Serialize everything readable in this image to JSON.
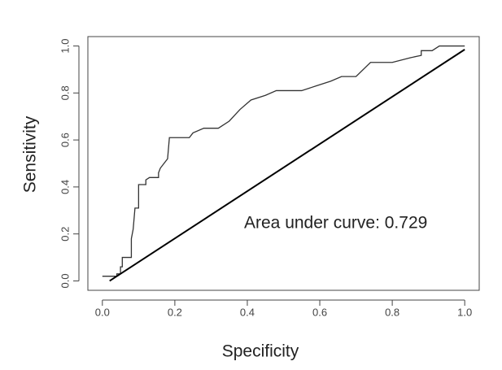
{
  "chart_data": {
    "type": "line",
    "xlabel": "Specificity",
    "ylabel": "Sensitivity",
    "annotation": "Area under curve: 0.729",
    "xlim": [
      -0.04,
      1.04
    ],
    "ylim": [
      -0.04,
      1.04
    ],
    "xticks": [
      {
        "value": 0,
        "label": "0.0"
      },
      0.2,
      0.4,
      0.6,
      0.8,
      {
        "value": 1,
        "label": "1.0"
      }
    ],
    "yticks": [
      {
        "value": 0,
        "label": "0.0"
      },
      0.2,
      0.4,
      0.6,
      0.8,
      {
        "value": 1,
        "label": "1.0"
      }
    ],
    "series": [
      {
        "color": "#333333",
        "x": [
          0.0,
          0.04,
          0.04,
          0.05,
          0.05,
          0.055,
          0.055,
          0.08,
          0.08,
          0.085,
          0.09,
          0.1,
          0.1,
          0.12,
          0.12,
          0.13,
          0.155,
          0.155,
          0.16,
          0.17,
          0.18,
          0.185,
          0.24,
          0.25,
          0.28,
          0.32,
          0.35,
          0.38,
          0.41,
          0.45,
          0.48,
          0.55,
          0.59,
          0.63,
          0.66,
          0.7,
          0.74,
          0.8,
          0.85,
          0.88,
          0.88,
          0.91,
          0.93,
          1.0
        ],
        "values": [
          0.02,
          0.02,
          0.03,
          0.03,
          0.06,
          0.06,
          0.1,
          0.1,
          0.18,
          0.22,
          0.31,
          0.31,
          0.41,
          0.41,
          0.43,
          0.44,
          0.44,
          0.46,
          0.48,
          0.5,
          0.52,
          0.61,
          0.61,
          0.63,
          0.65,
          0.65,
          0.68,
          0.73,
          0.77,
          0.79,
          0.81,
          0.81,
          0.83,
          0.85,
          0.87,
          0.87,
          0.93,
          0.93,
          0.95,
          0.96,
          0.98,
          0.98,
          1.0,
          1.0
        ]
      },
      {
        "color": "#000000",
        "x": [
          0.02,
          1.0
        ],
        "values": [
          0.0,
          0.985
        ]
      }
    ]
  }
}
